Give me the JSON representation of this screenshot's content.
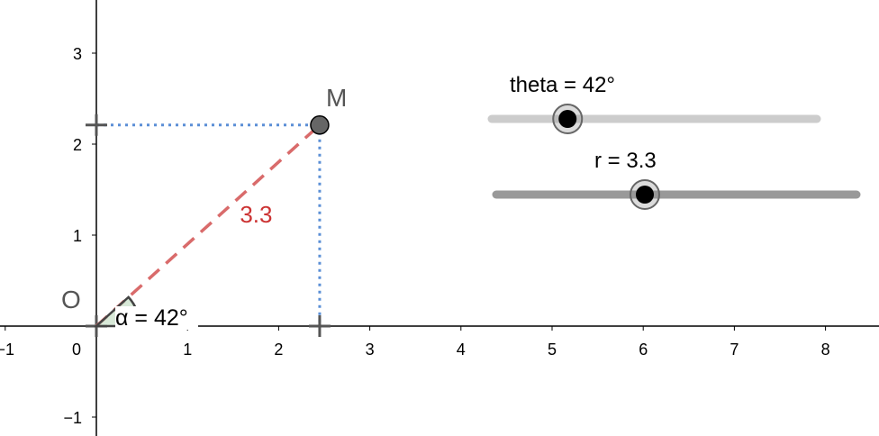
{
  "axes": {
    "x_ticks": [
      {
        "value": -1,
        "label": "−1"
      },
      {
        "value": 0,
        "label": "0"
      },
      {
        "value": 1,
        "label": "1"
      },
      {
        "value": 2,
        "label": "2"
      },
      {
        "value": 3,
        "label": "3"
      },
      {
        "value": 4,
        "label": "4"
      },
      {
        "value": 5,
        "label": "5"
      },
      {
        "value": 6,
        "label": "6"
      },
      {
        "value": 7,
        "label": "7"
      },
      {
        "value": 8,
        "label": "8"
      }
    ],
    "y_ticks": [
      {
        "value": -1,
        "label": "−1"
      },
      {
        "value": 1,
        "label": "1"
      },
      {
        "value": 2,
        "label": "2"
      },
      {
        "value": 3,
        "label": "3"
      }
    ]
  },
  "points": {
    "origin": {
      "label": "O",
      "x": 0,
      "y": 0
    },
    "m": {
      "label": "M",
      "x": 2.45,
      "y": 2.21
    }
  },
  "segment": {
    "label": "3.3",
    "color": "#d96b6b",
    "label_color": "#cc3333"
  },
  "angle": {
    "label": "α = 42°",
    "degrees": 42
  },
  "projection_color": "#5b8fd6",
  "sliders": {
    "theta": {
      "label": "theta = 42°",
      "value": 42,
      "min": 0,
      "max": 180,
      "track_color": "#cccccc"
    },
    "r": {
      "label": "r = 3.3",
      "value": 3.3,
      "min": 0,
      "max": 8,
      "track_color": "#999999"
    }
  }
}
